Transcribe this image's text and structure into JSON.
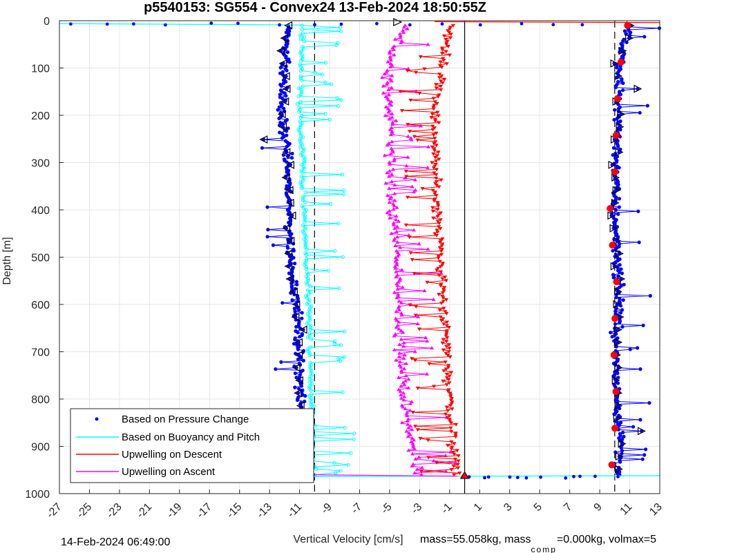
{
  "chart_data": {
    "type": "scatter",
    "title": "p5540153: SG554 - Convex24 13-Feb-2024 18:50:55Z",
    "xlabel": "Vertical Velocity [cm/s]",
    "ylabel": "Depth [m]",
    "xlim": [
      -27,
      13
    ],
    "ylim": [
      0,
      1000
    ],
    "y_reversed": true,
    "x_ticks": [
      "-27",
      "-25",
      "-23",
      "-21",
      "-19",
      "-17",
      "-15",
      "-13",
      "-11",
      "-9",
      "-7",
      "-5",
      "-3",
      "-1",
      "1",
      "3",
      "5",
      "7",
      "9",
      "11",
      "13"
    ],
    "y_ticks": [
      "0",
      "100",
      "200",
      "300",
      "400",
      "500",
      "600",
      "700",
      "800",
      "900",
      "1000"
    ],
    "grid": true,
    "legend_position": "bottom-left",
    "reference_lines": {
      "mean_descent": -10,
      "zero": 0,
      "mean_ascent": 10
    },
    "series": [
      {
        "name": "Based on Pressure Change",
        "color": "#0000ff",
        "marker": "dot",
        "depth": [
          10,
          100,
          200,
          300,
          400,
          500,
          600,
          700,
          800,
          900,
          960,
          960,
          900,
          800,
          700,
          600,
          500,
          400,
          300,
          200,
          100,
          10
        ],
        "values": [
          -11.8,
          -12.0,
          -12.2,
          -11.8,
          -11.7,
          -11.6,
          -11.2,
          -11.0,
          -11.0,
          -10.8,
          -10.6,
          10.2,
          10.4,
          10.2,
          10.0,
          10.3,
          10.2,
          10.0,
          10.1,
          10.3,
          10.2,
          11.0
        ]
      },
      {
        "name": "Based on Buoyancy and Pitch",
        "color": "#00ffff",
        "marker": "circle",
        "depth": [
          10,
          100,
          200,
          300,
          400,
          500,
          600,
          700,
          800,
          900,
          960
        ],
        "values": [
          -10.8,
          -10.9,
          -11.0,
          -10.8,
          -10.7,
          -10.6,
          -10.4,
          -10.3,
          -10.2,
          -10.1,
          -10.0
        ]
      },
      {
        "name": "Upwelling on Descent",
        "color": "#ff0000",
        "marker": "triangle-down",
        "depth": [
          10,
          100,
          200,
          300,
          400,
          500,
          600,
          700,
          800,
          900,
          960
        ],
        "values": [
          -1.0,
          -1.5,
          -2.0,
          -2.0,
          -1.8,
          -1.6,
          -1.4,
          -1.2,
          -1.0,
          -0.8,
          -0.5
        ]
      },
      {
        "name": "Upwelling on Ascent",
        "color": "#ff00ff",
        "marker": "triangle-up",
        "depth": [
          960,
          900,
          800,
          700,
          600,
          500,
          400,
          300,
          200,
          100,
          10
        ],
        "values": [
          -3.0,
          -3.5,
          -4.0,
          -4.2,
          -4.5,
          -4.5,
          -4.8,
          -5.0,
          -5.0,
          -5.2,
          -4.0
        ]
      }
    ],
    "extra_markers": [
      {
        "series": "Based on Pressure Change",
        "kind": "open-triangle",
        "color": "#000000"
      },
      {
        "series": "Upwelling on Descent",
        "kind": "filled-circle",
        "color": "#ff0000"
      }
    ]
  },
  "footer": {
    "timestamp": "14-Feb-2024 06:49:00",
    "mass_text": "mass=55.058kg, mass",
    "mass_sub": "comp",
    "mass_rest": "=0.000kg, volmax=5"
  }
}
